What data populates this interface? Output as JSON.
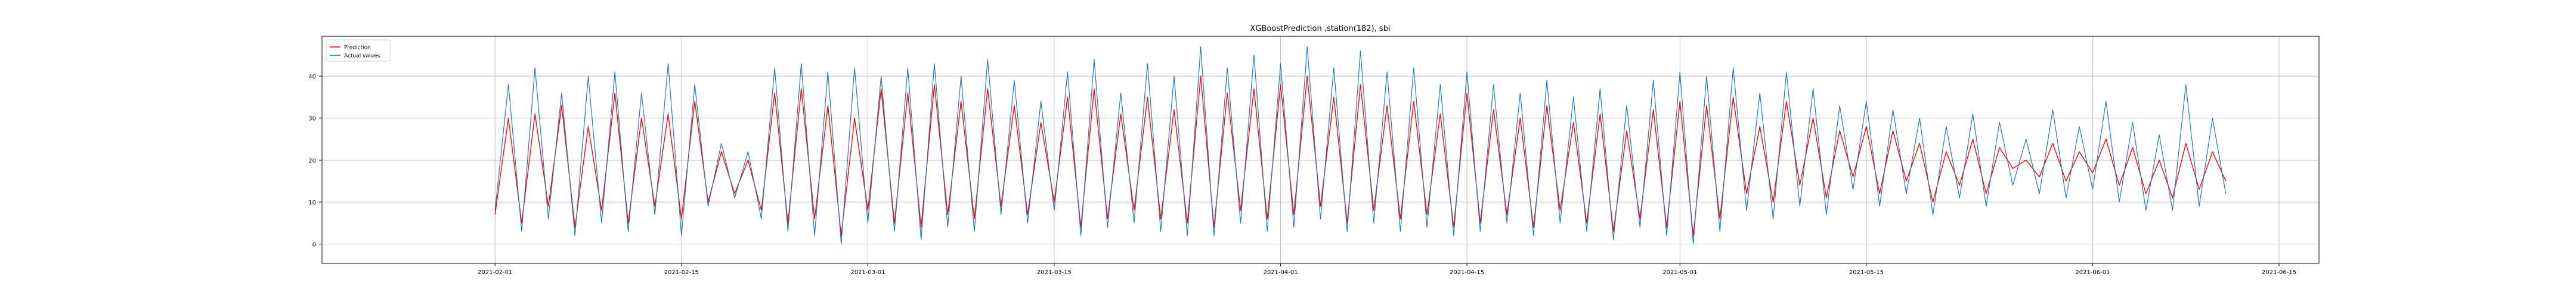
{
  "chart_data": {
    "type": "line",
    "title": "XGBoostPrediction ,station(182), sbi",
    "xlabel": "",
    "ylabel": "",
    "x_range": [
      "2021-01-19",
      "2021-06-18"
    ],
    "ylim": [
      -4.6,
      49.5
    ],
    "x_ticks": [
      "2021-02-01",
      "2021-02-15",
      "2021-03-01",
      "2021-03-15",
      "2021-04-01",
      "2021-04-15",
      "2021-05-01",
      "2021-05-15",
      "2021-06-01",
      "2021-06-15"
    ],
    "y_ticks": [
      0,
      10,
      20,
      30,
      40
    ],
    "grid": true,
    "legend_position": "upper left",
    "colors": {
      "Prediction": "#ff0000",
      "Actual values": "#1f77b4"
    },
    "series": [
      {
        "name": "Prediction",
        "x": [
          "2021-02-01",
          "2021-02-02",
          "2021-02-03",
          "2021-02-04",
          "2021-02-05",
          "2021-02-06",
          "2021-02-07",
          "2021-02-08",
          "2021-02-09",
          "2021-02-10",
          "2021-02-11",
          "2021-02-12",
          "2021-02-13",
          "2021-02-14",
          "2021-02-15",
          "2021-02-16",
          "2021-02-17",
          "2021-02-18",
          "2021-02-19",
          "2021-02-20",
          "2021-02-21",
          "2021-02-22",
          "2021-02-23",
          "2021-02-24",
          "2021-02-25",
          "2021-02-26",
          "2021-02-27",
          "2021-02-28",
          "2021-03-01",
          "2021-03-02",
          "2021-03-03",
          "2021-03-04",
          "2021-03-05",
          "2021-03-06",
          "2021-03-07",
          "2021-03-08",
          "2021-03-09",
          "2021-03-10",
          "2021-03-11",
          "2021-03-12",
          "2021-03-13",
          "2021-03-14",
          "2021-03-15",
          "2021-03-16",
          "2021-03-17",
          "2021-03-18",
          "2021-03-19",
          "2021-03-20",
          "2021-03-21",
          "2021-03-22",
          "2021-03-23",
          "2021-03-24",
          "2021-03-25",
          "2021-03-26",
          "2021-03-27",
          "2021-03-28",
          "2021-03-29",
          "2021-03-30",
          "2021-03-31",
          "2021-04-01",
          "2021-04-02",
          "2021-04-03",
          "2021-04-04",
          "2021-04-05",
          "2021-04-06",
          "2021-04-07",
          "2021-04-08",
          "2021-04-09",
          "2021-04-10",
          "2021-04-11",
          "2021-04-12",
          "2021-04-13",
          "2021-04-14",
          "2021-04-15",
          "2021-04-16",
          "2021-04-17",
          "2021-04-18",
          "2021-04-19",
          "2021-04-20",
          "2021-04-21",
          "2021-04-22",
          "2021-04-23",
          "2021-04-24",
          "2021-04-25",
          "2021-04-26",
          "2021-04-27",
          "2021-04-28",
          "2021-04-29",
          "2021-04-30",
          "2021-05-01",
          "2021-05-02",
          "2021-05-03",
          "2021-05-04",
          "2021-05-05",
          "2021-05-06",
          "2021-05-07",
          "2021-05-08",
          "2021-05-09",
          "2021-05-10",
          "2021-05-11",
          "2021-05-12",
          "2021-05-13",
          "2021-05-14",
          "2021-05-15",
          "2021-05-16",
          "2021-05-17",
          "2021-05-18",
          "2021-05-19",
          "2021-05-20",
          "2021-05-21",
          "2021-05-22",
          "2021-05-23",
          "2021-05-24",
          "2021-05-25",
          "2021-05-26",
          "2021-05-27",
          "2021-05-28",
          "2021-05-29",
          "2021-05-30",
          "2021-05-31",
          "2021-06-01",
          "2021-06-02",
          "2021-06-03",
          "2021-06-04",
          "2021-06-05",
          "2021-06-06",
          "2021-06-07",
          "2021-06-08",
          "2021-06-09",
          "2021-06-10",
          "2021-06-11"
        ],
        "y": [
          7,
          30,
          5,
          31,
          9,
          33,
          4,
          28,
          8,
          36,
          5,
          30,
          9,
          31,
          6,
          34,
          10,
          22,
          12,
          20,
          8,
          36,
          5,
          37,
          6,
          33,
          2,
          30,
          8,
          37,
          5,
          36,
          4,
          38,
          7,
          34,
          6,
          37,
          9,
          33,
          7,
          29,
          10,
          35,
          4,
          37,
          6,
          31,
          8,
          35,
          6,
          32,
          5,
          40,
          4,
          36,
          8,
          37,
          6,
          38,
          7,
          40,
          9,
          35,
          5,
          38,
          8,
          33,
          6,
          34,
          7,
          31,
          4,
          36,
          5,
          32,
          7,
          30,
          4,
          33,
          8,
          29,
          5,
          31,
          3,
          27,
          6,
          32,
          4,
          34,
          2,
          33,
          6,
          35,
          12,
          28,
          10,
          34,
          14,
          30,
          11,
          27,
          16,
          28,
          12,
          27,
          15,
          24,
          10,
          22,
          14,
          25,
          12,
          23,
          18,
          20,
          16,
          24,
          15,
          22,
          17,
          25,
          14,
          23,
          12,
          20,
          11,
          24,
          13,
          22,
          15
        ]
      },
      {
        "name": "Actual values",
        "x": [
          "2021-02-01",
          "2021-02-02",
          "2021-02-03",
          "2021-02-04",
          "2021-02-05",
          "2021-02-06",
          "2021-02-07",
          "2021-02-08",
          "2021-02-09",
          "2021-02-10",
          "2021-02-11",
          "2021-02-12",
          "2021-02-13",
          "2021-02-14",
          "2021-02-15",
          "2021-02-16",
          "2021-02-17",
          "2021-02-18",
          "2021-02-19",
          "2021-02-20",
          "2021-02-21",
          "2021-02-22",
          "2021-02-23",
          "2021-02-24",
          "2021-02-25",
          "2021-02-26",
          "2021-02-27",
          "2021-02-28",
          "2021-03-01",
          "2021-03-02",
          "2021-03-03",
          "2021-03-04",
          "2021-03-05",
          "2021-03-06",
          "2021-03-07",
          "2021-03-08",
          "2021-03-09",
          "2021-03-10",
          "2021-03-11",
          "2021-03-12",
          "2021-03-13",
          "2021-03-14",
          "2021-03-15",
          "2021-03-16",
          "2021-03-17",
          "2021-03-18",
          "2021-03-19",
          "2021-03-20",
          "2021-03-21",
          "2021-03-22",
          "2021-03-23",
          "2021-03-24",
          "2021-03-25",
          "2021-03-26",
          "2021-03-27",
          "2021-03-28",
          "2021-03-29",
          "2021-03-30",
          "2021-03-31",
          "2021-04-01",
          "2021-04-02",
          "2021-04-03",
          "2021-04-04",
          "2021-04-05",
          "2021-04-06",
          "2021-04-07",
          "2021-04-08",
          "2021-04-09",
          "2021-04-10",
          "2021-04-11",
          "2021-04-12",
          "2021-04-13",
          "2021-04-14",
          "2021-04-15",
          "2021-04-16",
          "2021-04-17",
          "2021-04-18",
          "2021-04-19",
          "2021-04-20",
          "2021-04-21",
          "2021-04-22",
          "2021-04-23",
          "2021-04-24",
          "2021-04-25",
          "2021-04-26",
          "2021-04-27",
          "2021-04-28",
          "2021-04-29",
          "2021-04-30",
          "2021-05-01",
          "2021-05-02",
          "2021-05-03",
          "2021-05-04",
          "2021-05-05",
          "2021-05-06",
          "2021-05-07",
          "2021-05-08",
          "2021-05-09",
          "2021-05-10",
          "2021-05-11",
          "2021-05-12",
          "2021-05-13",
          "2021-05-14",
          "2021-05-15",
          "2021-05-16",
          "2021-05-17",
          "2021-05-18",
          "2021-05-19",
          "2021-05-20",
          "2021-05-21",
          "2021-05-22",
          "2021-05-23",
          "2021-05-24",
          "2021-05-25",
          "2021-05-26",
          "2021-05-27",
          "2021-05-28",
          "2021-05-29",
          "2021-05-30",
          "2021-05-31",
          "2021-06-01",
          "2021-06-02",
          "2021-06-03",
          "2021-06-04",
          "2021-06-05",
          "2021-06-06",
          "2021-06-07",
          "2021-06-08",
          "2021-06-09",
          "2021-06-10",
          "2021-06-11"
        ],
        "y": [
          8,
          38,
          3,
          42,
          6,
          36,
          2,
          40,
          5,
          41,
          3,
          36,
          7,
          43,
          2,
          38,
          9,
          24,
          11,
          22,
          6,
          42,
          3,
          43,
          2,
          41,
          0,
          42,
          5,
          40,
          3,
          42,
          1,
          43,
          4,
          40,
          3,
          44,
          7,
          39,
          5,
          34,
          8,
          41,
          2,
          44,
          4,
          36,
          5,
          43,
          3,
          40,
          2,
          47,
          2,
          42,
          5,
          45,
          3,
          43,
          4,
          47,
          6,
          42,
          3,
          46,
          5,
          41,
          3,
          42,
          4,
          38,
          2,
          41,
          3,
          38,
          5,
          36,
          2,
          39,
          5,
          35,
          3,
          37,
          1,
          33,
          4,
          39,
          2,
          41,
          0,
          40,
          3,
          42,
          8,
          36,
          6,
          41,
          9,
          37,
          7,
          33,
          13,
          34,
          9,
          32,
          12,
          30,
          7,
          28,
          11,
          31,
          9,
          29,
          14,
          25,
          12,
          32,
          11,
          28,
          13,
          34,
          10,
          29,
          8,
          26,
          8,
          38,
          9,
          30,
          12
        ]
      }
    ]
  }
}
